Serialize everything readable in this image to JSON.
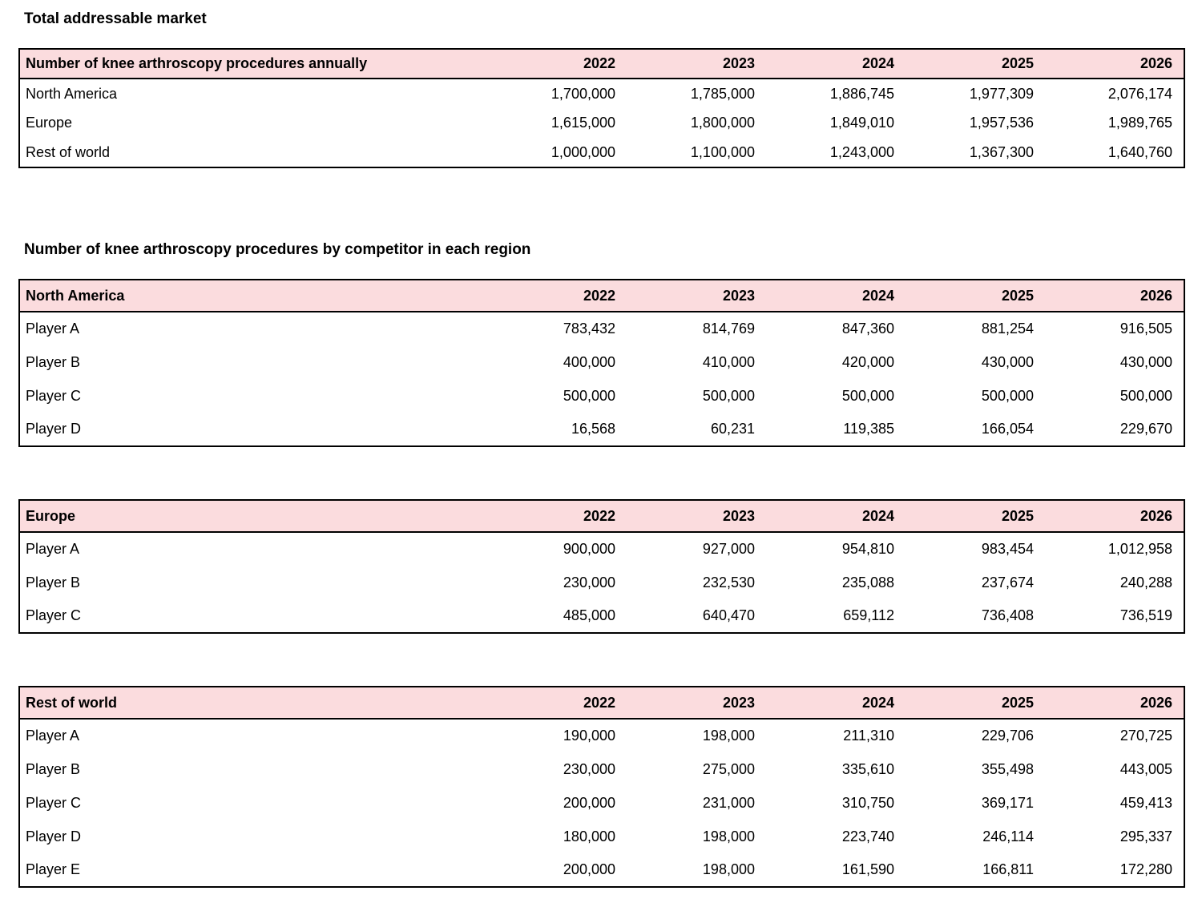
{
  "colors": {
    "header_fill": "#fbdcde",
    "border": "#000000",
    "background": "#ffffff"
  },
  "titles": {
    "total_addressable_market": "Total addressable market",
    "by_competitor": "Number of knee arthroscopy procedures by competitor in each region"
  },
  "years": [
    "2022",
    "2023",
    "2024",
    "2025",
    "2026"
  ],
  "tables": {
    "tam": {
      "header": "Number of knee arthroscopy procedures annually",
      "rows": [
        {
          "label": "North America",
          "values": [
            "1,700,000",
            "1,785,000",
            "1,886,745",
            "1,977,309",
            "2,076,174"
          ]
        },
        {
          "label": "Europe",
          "values": [
            "1,615,000",
            "1,800,000",
            "1,849,010",
            "1,957,536",
            "1,989,765"
          ]
        },
        {
          "label": "Rest of world",
          "values": [
            "1,000,000",
            "1,100,000",
            "1,243,000",
            "1,367,300",
            "1,640,760"
          ]
        }
      ]
    },
    "north_america": {
      "header": "North America",
      "rows": [
        {
          "label": "Player A",
          "values": [
            "783,432",
            "814,769",
            "847,360",
            "881,254",
            "916,505"
          ]
        },
        {
          "label": "Player B",
          "values": [
            "400,000",
            "410,000",
            "420,000",
            "430,000",
            "430,000"
          ]
        },
        {
          "label": "Player C",
          "values": [
            "500,000",
            "500,000",
            "500,000",
            "500,000",
            "500,000"
          ]
        },
        {
          "label": "Player D",
          "values": [
            "16,568",
            "60,231",
            "119,385",
            "166,054",
            "229,670"
          ]
        }
      ]
    },
    "europe": {
      "header": "Europe",
      "rows": [
        {
          "label": "Player A",
          "values": [
            "900,000",
            "927,000",
            "954,810",
            "983,454",
            "1,012,958"
          ]
        },
        {
          "label": "Player B",
          "values": [
            "230,000",
            "232,530",
            "235,088",
            "237,674",
            "240,288"
          ]
        },
        {
          "label": "Player C",
          "values": [
            "485,000",
            "640,470",
            "659,112",
            "736,408",
            "736,519"
          ]
        }
      ]
    },
    "rest_of_world": {
      "header": "Rest of world",
      "rows": [
        {
          "label": "Player A",
          "values": [
            "190,000",
            "198,000",
            "211,310",
            "229,706",
            "270,725"
          ]
        },
        {
          "label": "Player B",
          "values": [
            "230,000",
            "275,000",
            "335,610",
            "355,498",
            "443,005"
          ]
        },
        {
          "label": "Player C",
          "values": [
            "200,000",
            "231,000",
            "310,750",
            "369,171",
            "459,413"
          ]
        },
        {
          "label": "Player D",
          "values": [
            "180,000",
            "198,000",
            "223,740",
            "246,114",
            "295,337"
          ]
        },
        {
          "label": "Player E",
          "values": [
            "200,000",
            "198,000",
            "161,590",
            "166,811",
            "172,280"
          ]
        }
      ]
    }
  }
}
